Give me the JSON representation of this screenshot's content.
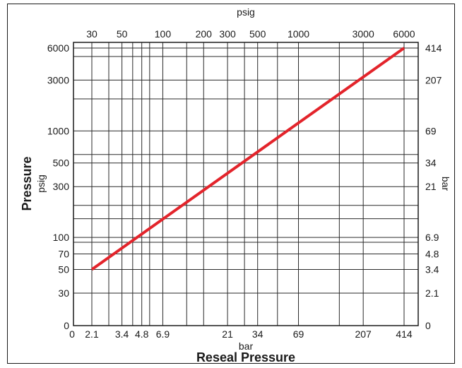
{
  "chart_data": {
    "type": "line",
    "xlabel": "Reseal Pressure",
    "ylabel": "Pressure",
    "x_axis": {
      "scale": "log",
      "top_unit": "psig",
      "bottom_unit": "bar",
      "top_ticks": [
        {
          "value": 30,
          "label": "30"
        },
        {
          "value": 50,
          "label": "50"
        },
        {
          "value": 100,
          "label": "100"
        },
        {
          "value": 200,
          "label": "200"
        },
        {
          "value": 300,
          "label": "300"
        },
        {
          "value": 500,
          "label": "500"
        },
        {
          "value": 1000,
          "label": "1000"
        },
        {
          "value": 3000,
          "label": "3000"
        },
        {
          "value": 6000,
          "label": "6000"
        }
      ],
      "bottom_ticks": [
        {
          "value": 0,
          "label": "0"
        },
        {
          "value": 30,
          "label": "2.1"
        },
        {
          "value": 50,
          "label": "3.4"
        },
        {
          "value": 70,
          "label": "4.8"
        },
        {
          "value": 100,
          "label": "6.9"
        },
        {
          "value": 300,
          "label": "21"
        },
        {
          "value": 500,
          "label": "34"
        },
        {
          "value": 1000,
          "label": "69"
        },
        {
          "value": 3000,
          "label": "207"
        },
        {
          "value": 6000,
          "label": "414"
        }
      ]
    },
    "y_axis": {
      "scale": "log",
      "left_unit": "psig",
      "right_unit": "bar",
      "left_ticks": [
        {
          "value": 6000,
          "label": "6000"
        },
        {
          "value": 3000,
          "label": "3000"
        },
        {
          "value": 1000,
          "label": "1000"
        },
        {
          "value": 500,
          "label": "500"
        },
        {
          "value": 300,
          "label": "300"
        },
        {
          "value": 100,
          "label": "100"
        },
        {
          "value": 70,
          "label": "70"
        },
        {
          "value": 50,
          "label": "50"
        },
        {
          "value": 30,
          "label": "30"
        },
        {
          "value": 0,
          "label": "0"
        }
      ],
      "right_ticks": [
        {
          "value": 6000,
          "label": "414"
        },
        {
          "value": 3000,
          "label": "207"
        },
        {
          "value": 1000,
          "label": "69"
        },
        {
          "value": 500,
          "label": "34"
        },
        {
          "value": 300,
          "label": "21"
        },
        {
          "value": 100,
          "label": "6.9"
        },
        {
          "value": 70,
          "label": "4.8"
        },
        {
          "value": 50,
          "label": "3.4"
        },
        {
          "value": 30,
          "label": "2.1"
        },
        {
          "value": 0,
          "label": "0"
        }
      ]
    },
    "grid": true,
    "series": [
      {
        "color": "#e3242b",
        "x": [
          30,
          6000
        ],
        "y": [
          50,
          6000
        ]
      }
    ]
  }
}
